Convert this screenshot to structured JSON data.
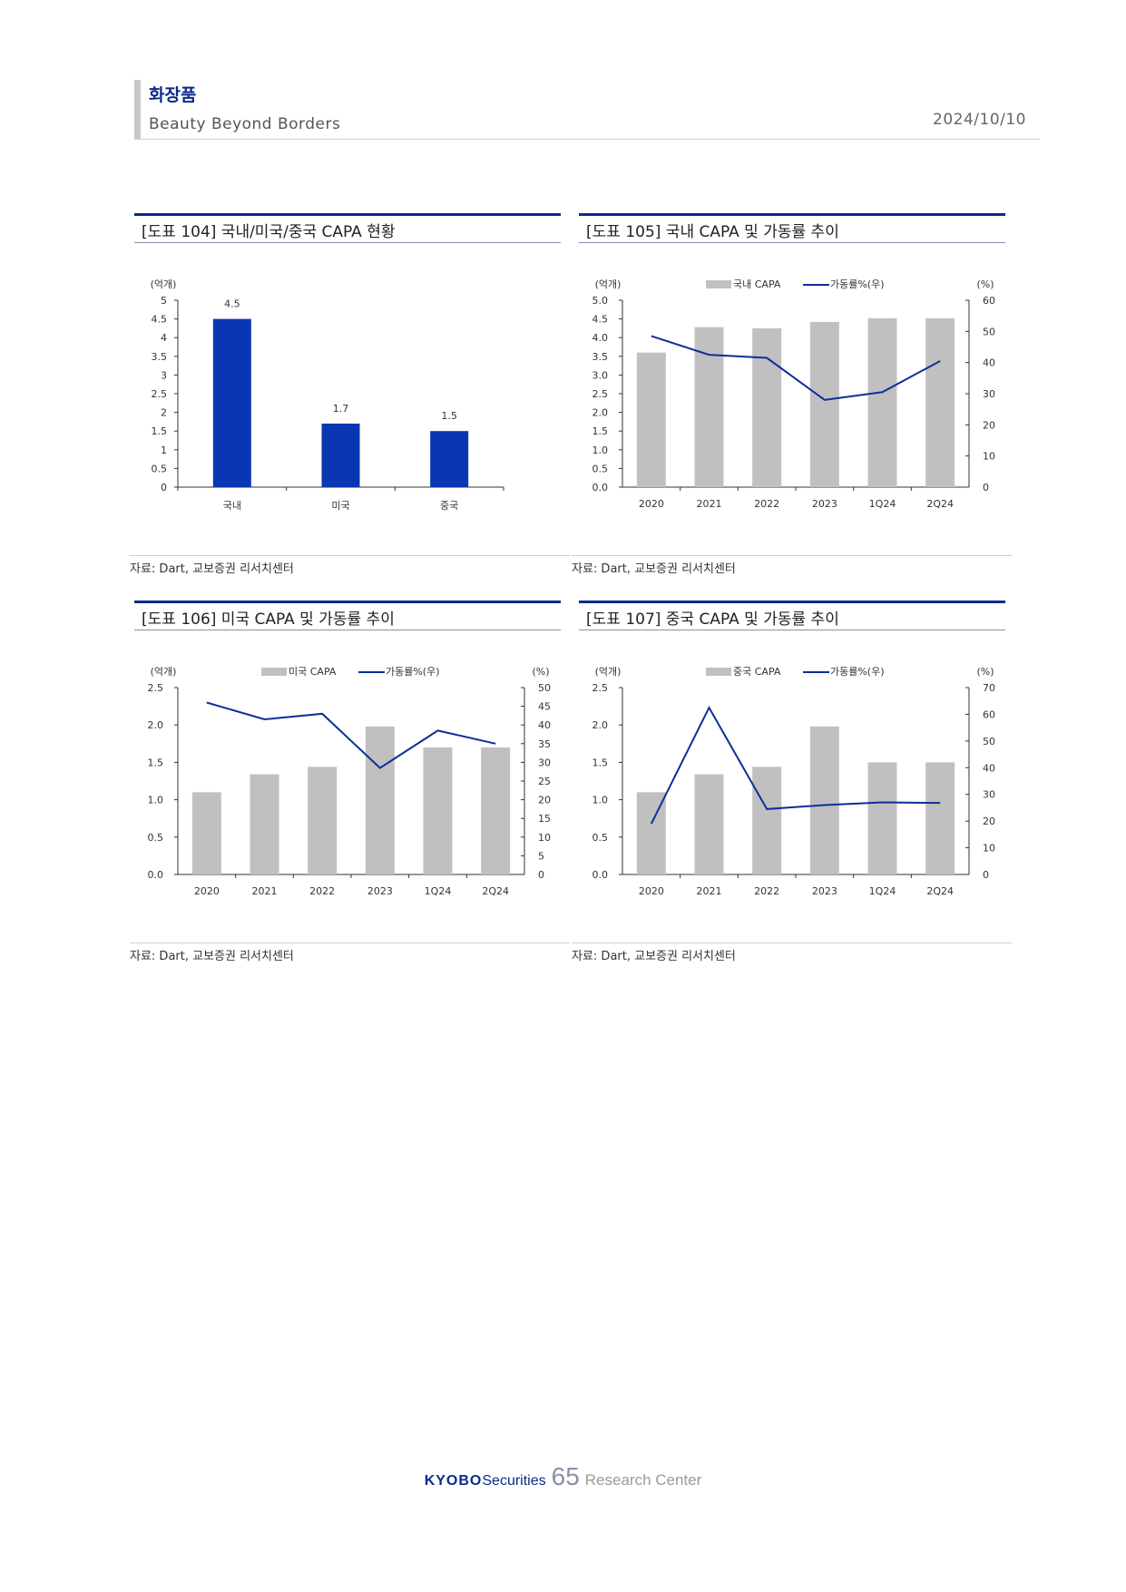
{
  "header": {
    "section": "화장품",
    "subtitle": "Beauty Beyond Borders",
    "date": "2024/10/10"
  },
  "colors": {
    "brand_navy": "#0b2a8a",
    "bar_blue": "#0a36b4",
    "bar_gray": "#c0c0c0",
    "line_blue": "#0b2f9a"
  },
  "charts": [
    {
      "title": "[도표 104] 국내/미국/중국 CAPA 현황",
      "source": "자료: Dart, 교보증권 리서치센터",
      "left_unit": "(억개)"
    },
    {
      "title": "[도표 105] 국내 CAPA 및 가동률 추이",
      "source": "자료: Dart, 교보증권 리서치센터",
      "left_unit": "(억개)",
      "right_unit": "(%)",
      "legend_bar": "국내 CAPA",
      "legend_line": "가동률%(우)"
    },
    {
      "title": "[도표 106] 미국 CAPA 및 가동률 추이",
      "source": "자료: Dart, 교보증권 리서치센터",
      "left_unit": "(억개)",
      "right_unit": "(%)",
      "legend_bar": "미국 CAPA",
      "legend_line": "가동률%(우)"
    },
    {
      "title": "[도표 107] 중국 CAPA 및 가동률 추이",
      "source": "자료: Dart, 교보증권 리서치센터",
      "left_unit": "(억개)",
      "right_unit": "(%)",
      "legend_bar": "중국 CAPA",
      "legend_line": "가동률%(우)"
    }
  ],
  "chart_data": [
    {
      "type": "bar",
      "categories": [
        "국내",
        "미국",
        "중국"
      ],
      "values": [
        4.5,
        1.7,
        1.5
      ],
      "data_labels": [
        "4.5",
        "1.7",
        "1.5"
      ],
      "ylim": [
        0,
        5
      ],
      "yticks": [
        "0",
        "0.5",
        "1",
        "1.5",
        "2",
        "2.5",
        "3",
        "3.5",
        "4",
        "4.5",
        "5"
      ],
      "grid": false,
      "legend": false
    },
    {
      "type": "bar+line",
      "categories": [
        "2020",
        "2021",
        "2022",
        "2023",
        "1Q24",
        "2Q24"
      ],
      "series": [
        {
          "name": "국내 CAPA",
          "type": "bar",
          "axis": "left",
          "values": [
            3.6,
            4.28,
            4.25,
            4.42,
            4.52,
            4.52
          ]
        },
        {
          "name": "가동률%(우)",
          "type": "line",
          "axis": "right",
          "values": [
            48.5,
            42.5,
            41.5,
            28,
            30.5,
            40.5
          ]
        }
      ],
      "ylim": [
        0,
        5.0
      ],
      "yticks": [
        "0.0",
        "0.5",
        "1.0",
        "1.5",
        "2.0",
        "2.5",
        "3.0",
        "3.5",
        "4.0",
        "4.5",
        "5.0"
      ],
      "y2lim": [
        0,
        60
      ],
      "y2ticks": [
        "0",
        "10",
        "20",
        "30",
        "40",
        "50",
        "60"
      ],
      "legend": "top-center",
      "grid": false
    },
    {
      "type": "bar+line",
      "categories": [
        "2020",
        "2021",
        "2022",
        "2023",
        "1Q24",
        "2Q24"
      ],
      "series": [
        {
          "name": "미국 CAPA",
          "type": "bar",
          "axis": "left",
          "values": [
            1.1,
            1.34,
            1.44,
            1.98,
            1.7,
            1.7
          ]
        },
        {
          "name": "가동률%(우)",
          "type": "line",
          "axis": "right",
          "values": [
            46,
            41.5,
            43,
            28.5,
            38.5,
            35
          ]
        }
      ],
      "ylim": [
        0,
        2.5
      ],
      "yticks": [
        "0.0",
        "0.5",
        "1.0",
        "1.5",
        "2.0",
        "2.5"
      ],
      "y2lim": [
        0,
        50
      ],
      "y2ticks": [
        "0",
        "5",
        "10",
        "15",
        "20",
        "25",
        "30",
        "35",
        "40",
        "45",
        "50"
      ],
      "legend": "top-center",
      "grid": false
    },
    {
      "type": "bar+line",
      "categories": [
        "2020",
        "2021",
        "2022",
        "2023",
        "1Q24",
        "2Q24"
      ],
      "series": [
        {
          "name": "중국 CAPA",
          "type": "bar",
          "axis": "left",
          "values": [
            1.1,
            1.34,
            1.44,
            1.98,
            1.5,
            1.5
          ]
        },
        {
          "name": "가동률%(우)",
          "type": "line",
          "axis": "right",
          "values": [
            19,
            62.5,
            24.5,
            26,
            27,
            26.8
          ]
        }
      ],
      "ylim": [
        0,
        2.5
      ],
      "yticks": [
        "0.0",
        "0.5",
        "1.0",
        "1.5",
        "2.0",
        "2.5"
      ],
      "y2lim": [
        0,
        70
      ],
      "y2ticks": [
        "0",
        "10",
        "20",
        "30",
        "40",
        "50",
        "60",
        "70"
      ],
      "legend": "top-center",
      "grid": false
    }
  ],
  "footer": {
    "brand": "KYOBO",
    "brand_suffix": "Securities",
    "page_number": "65",
    "label": "Research Center"
  }
}
